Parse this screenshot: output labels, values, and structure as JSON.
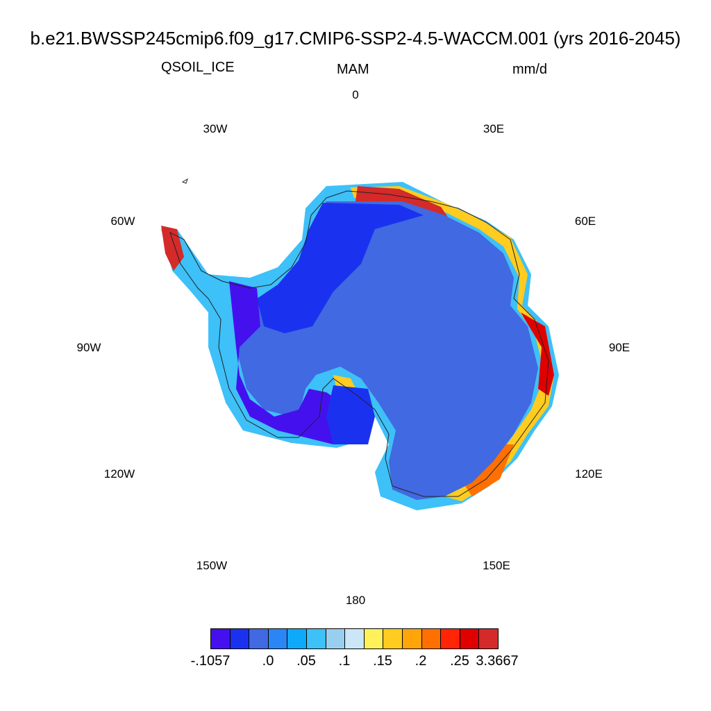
{
  "header": {
    "title": "b.e21.BWSSP245cmip6.f09_g17.CMIP6-SSP2-4.5-WACCM.001 (yrs 2016-2045)",
    "variable": "QSOIL_ICE",
    "season": "MAM",
    "units": "mm/d"
  },
  "longitude_labels": [
    "0",
    "30E",
    "60E",
    "90E",
    "120E",
    "150E",
    "180",
    "150W",
    "120W",
    "90W",
    "60W",
    "30W"
  ],
  "colorbar": {
    "colors": [
      "#4411ee",
      "#1a32f0",
      "#4169e1",
      "#2a86f5",
      "#0ea9f8",
      "#3ec0f8",
      "#99cfee",
      "#cbe6f6",
      "#fff15a",
      "#ffcc1f",
      "#ffa50a",
      "#ff7000",
      "#ff2505",
      "#e00000",
      "#d42a2a"
    ],
    "labels": [
      "-.1057",
      ".0",
      ".05",
      ".1",
      ".15",
      ".2",
      ".25",
      "3.3667"
    ]
  }
}
